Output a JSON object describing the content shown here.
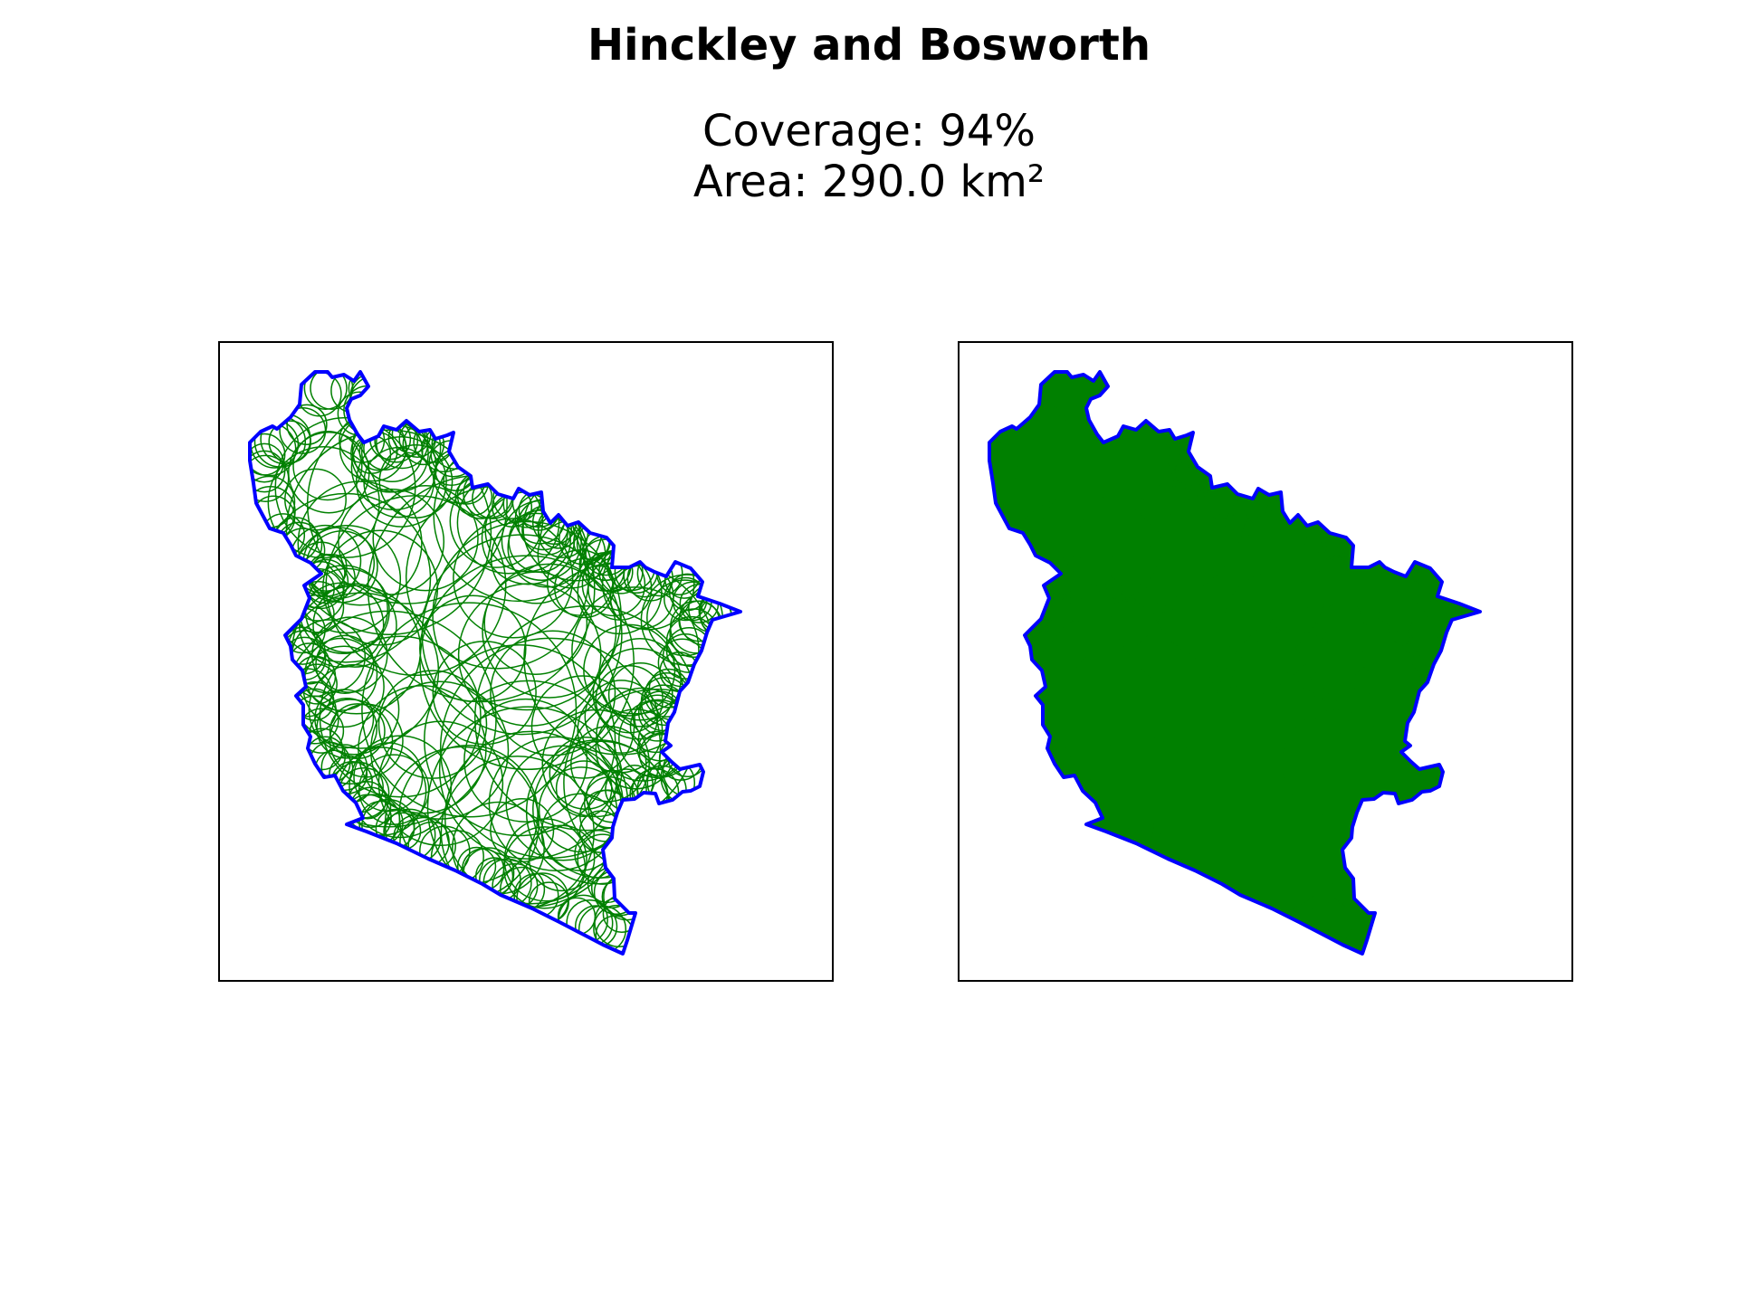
{
  "title": "Hinckley and Bosworth",
  "subtitle": {
    "coverage": "Coverage: 94%",
    "area": "Area: 290.0 km²"
  },
  "colors": {
    "boundary": "#0000ff",
    "coverage": "#008000",
    "frame": "#000000",
    "background": "#ffffff"
  },
  "panels": [
    {
      "name": "outline-panel",
      "style": "outlined circles"
    },
    {
      "name": "filled-panel",
      "style": "filled circles"
    }
  ]
}
